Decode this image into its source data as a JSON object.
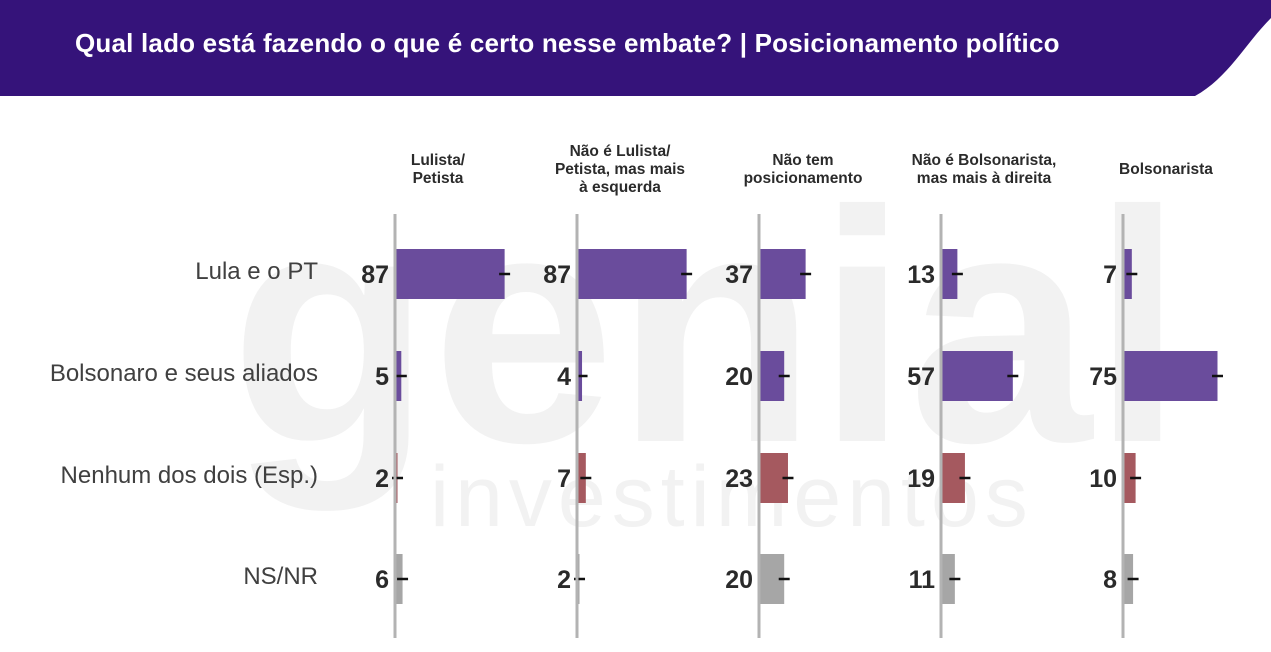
{
  "header": {
    "title": "Qual lado está fazendo o que é certo nesse embate? | Posicionamento político",
    "background_color": "#35137a"
  },
  "watermark": {
    "brand": "genial",
    "sub": "investimentos"
  },
  "chart_data": {
    "type": "bar",
    "orientation": "horizontal",
    "layout": "small-multiples",
    "categories": [
      "Lula e o PT",
      "Bolsonaro e seus aliados",
      "Nenhum dos dois (Esp.)",
      "NS/NR"
    ],
    "category_colors": [
      "#6a4c9c",
      "#6a4c9c",
      "#a5595f",
      "#a6a6a6"
    ],
    "panels": [
      {
        "name": "Lulista/ Petista",
        "name_lines": [
          "Lulista/",
          "Petista"
        ],
        "values": [
          87,
          5,
          2,
          6
        ]
      },
      {
        "name": "Não é Lulista/ Petista, mas mais à esquerda",
        "name_lines": [
          "Não é Lulista/",
          "Petista, mas mais",
          "à esquerda"
        ],
        "values": [
          87,
          4,
          7,
          2
        ]
      },
      {
        "name": "Não tem posicionamento",
        "name_lines": [
          "Não tem",
          "posicionamento"
        ],
        "values": [
          37,
          20,
          23,
          20
        ]
      },
      {
        "name": "Não é Bolsonarista, mas mais à direita",
        "name_lines": [
          "Não é Bolsonarista,",
          "mas mais à direita"
        ],
        "values": [
          13,
          57,
          19,
          11
        ]
      },
      {
        "name": "Bolsonarista",
        "name_lines": [
          "Bolsonarista"
        ],
        "values": [
          7,
          75,
          10,
          8
        ]
      }
    ],
    "xlim": [
      0,
      100
    ],
    "error_bars": true,
    "value_labels": true,
    "legend": "none",
    "grid": false
  }
}
